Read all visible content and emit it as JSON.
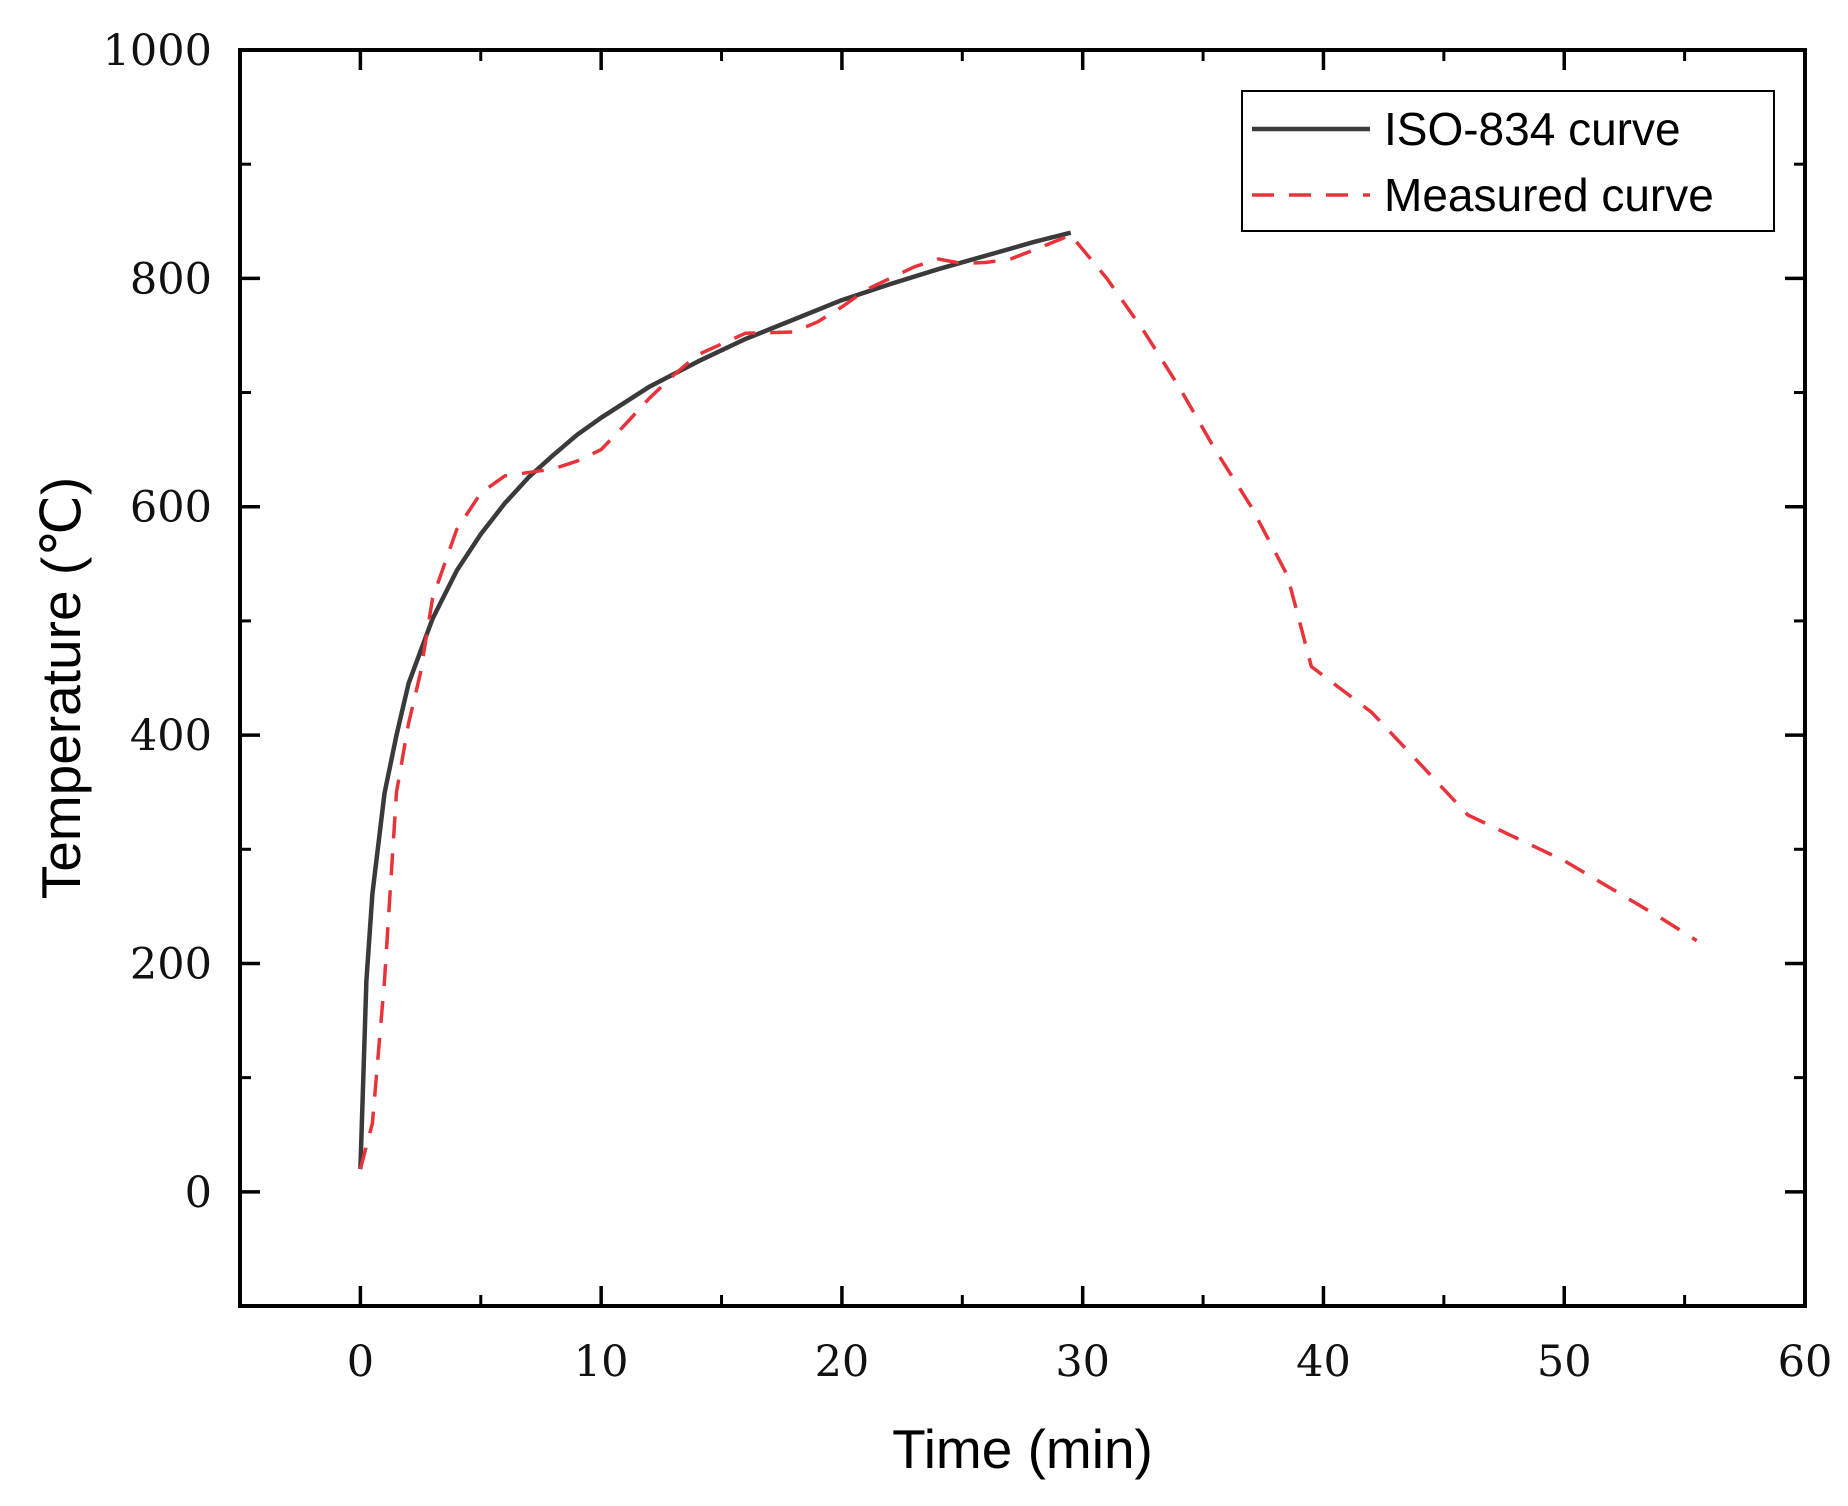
{
  "chart_data": {
    "type": "line",
    "xlabel": "Time (min)",
    "ylabel": "Temperature (℃)",
    "xlim": [
      -5,
      60
    ],
    "ylim": [
      -100,
      1000
    ],
    "x_ticks": [
      0,
      10,
      20,
      30,
      40,
      50,
      60
    ],
    "x_minor_ticks": [
      5,
      15,
      25,
      35,
      45,
      55
    ],
    "y_ticks": [
      0,
      200,
      400,
      600,
      800,
      1000
    ],
    "y_minor_ticks": [
      100,
      300,
      500,
      700,
      900
    ],
    "grid": false,
    "legend_position": "top-right",
    "series": [
      {
        "name": "ISO-834 curve",
        "color": "#3a3a3a",
        "style": "solid",
        "points": [
          [
            0,
            20
          ],
          [
            0.25,
            185
          ],
          [
            0.5,
            261
          ],
          [
            1,
            349
          ],
          [
            1.5,
            400
          ],
          [
            2,
            445
          ],
          [
            3,
            502
          ],
          [
            4,
            544
          ],
          [
            5,
            576
          ],
          [
            6,
            603
          ],
          [
            7,
            626
          ],
          [
            8,
            645
          ],
          [
            9,
            663
          ],
          [
            10,
            678
          ],
          [
            12,
            705
          ],
          [
            14,
            727
          ],
          [
            16,
            747
          ],
          [
            18,
            764
          ],
          [
            20,
            781
          ],
          [
            22,
            795
          ],
          [
            24,
            808
          ],
          [
            26,
            820
          ],
          [
            28,
            832
          ],
          [
            29.5,
            840
          ]
        ]
      },
      {
        "name": "Measured curve",
        "color": "#e8333a",
        "style": "dashed",
        "points": [
          [
            0,
            20
          ],
          [
            0.5,
            60
          ],
          [
            1,
            185
          ],
          [
            1.5,
            350
          ],
          [
            2,
            410
          ],
          [
            2.5,
            455
          ],
          [
            3,
            520
          ],
          [
            4,
            580
          ],
          [
            5,
            612
          ],
          [
            6,
            627
          ],
          [
            8,
            633
          ],
          [
            9,
            640
          ],
          [
            10,
            650
          ],
          [
            11,
            672
          ],
          [
            12,
            695
          ],
          [
            13,
            715
          ],
          [
            14,
            733
          ],
          [
            16,
            752
          ],
          [
            18,
            753
          ],
          [
            19,
            762
          ],
          [
            20,
            775
          ],
          [
            21,
            790
          ],
          [
            22,
            800
          ],
          [
            23,
            810
          ],
          [
            24,
            817
          ],
          [
            25,
            813
          ],
          [
            26,
            814
          ],
          [
            27,
            817
          ],
          [
            28,
            825
          ],
          [
            29.5,
            838
          ],
          [
            31,
            800
          ],
          [
            32.5,
            755
          ],
          [
            34,
            705
          ],
          [
            35.5,
            650
          ],
          [
            37,
            600
          ],
          [
            38.5,
            540
          ],
          [
            39.5,
            460
          ],
          [
            42,
            420
          ],
          [
            44,
            375
          ],
          [
            46,
            330
          ],
          [
            48,
            310
          ],
          [
            50,
            290
          ],
          [
            52,
            265
          ],
          [
            54,
            240
          ],
          [
            55.5,
            220
          ]
        ]
      }
    ]
  }
}
